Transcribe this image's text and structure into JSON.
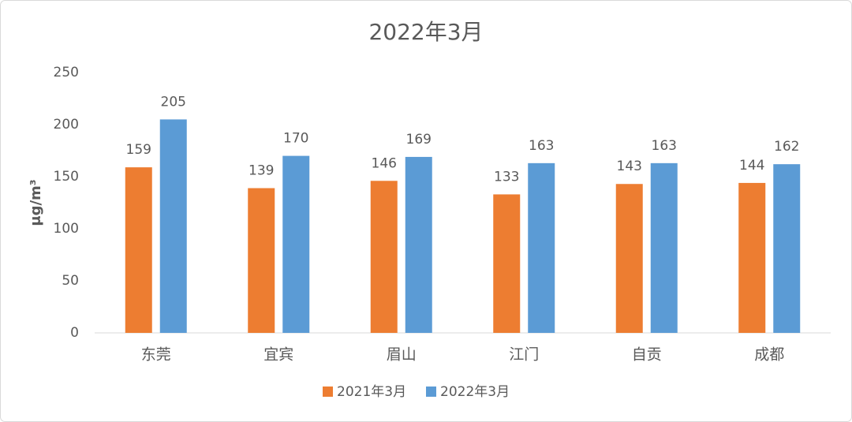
{
  "chart_data": {
    "type": "bar",
    "title": "2022年3月",
    "y_label": "μg/m³",
    "categories": [
      "东莞",
      "宜宾",
      "眉山",
      "江门",
      "自贡",
      "成都"
    ],
    "series": [
      {
        "name": "2021年3月",
        "color": "#ed7d31",
        "values": [
          159,
          139,
          146,
          133,
          143,
          144
        ]
      },
      {
        "name": "2022年3月",
        "color": "#5b9bd5",
        "values": [
          205,
          170,
          169,
          163,
          163,
          162
        ]
      }
    ],
    "ylim": [
      0,
      250
    ],
    "yticks": [
      0,
      50,
      100,
      150,
      200,
      250
    ],
    "grid": false,
    "legend": "bottom"
  }
}
